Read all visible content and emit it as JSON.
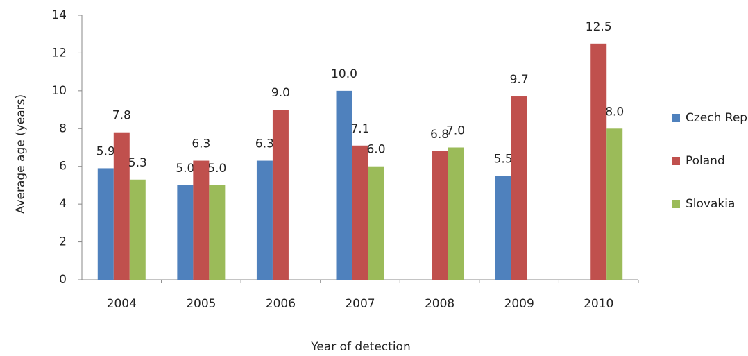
{
  "chart_data": {
    "type": "bar",
    "x_label": "Year of detection",
    "y_label": "Average age (years)",
    "categories": [
      "2004",
      "2005",
      "2006",
      "2007",
      "2008",
      "2009",
      "2010"
    ],
    "series": [
      {
        "name": "Czech Rep",
        "color": "#4f81bd",
        "values": [
          5.9,
          5.0,
          6.3,
          10.0,
          null,
          5.5,
          null
        ],
        "value_labels": [
          "5.9",
          "5.0",
          "6.3",
          "10.0",
          null,
          "5.5",
          null
        ]
      },
      {
        "name": "Poland",
        "color": "#c0504d",
        "values": [
          7.8,
          6.3,
          9.0,
          7.1,
          6.8,
          9.7,
          12.5
        ],
        "value_labels": [
          "7.8",
          "6.3",
          "9.0",
          "7.1",
          "6.8",
          "9.7",
          "12.5"
        ]
      },
      {
        "name": "Slovakia",
        "color": "#9bbb59",
        "values": [
          5.3,
          5.0,
          null,
          6.0,
          7.0,
          null,
          8.0
        ],
        "value_labels": [
          "5.3",
          "5.0",
          null,
          "6.0",
          "7.0",
          null,
          "8.0"
        ]
      }
    ],
    "ylim": [
      0,
      14
    ],
    "yticks": [
      0,
      2,
      4,
      6,
      8,
      10,
      12,
      14
    ],
    "grid": false,
    "legend": "right"
  }
}
